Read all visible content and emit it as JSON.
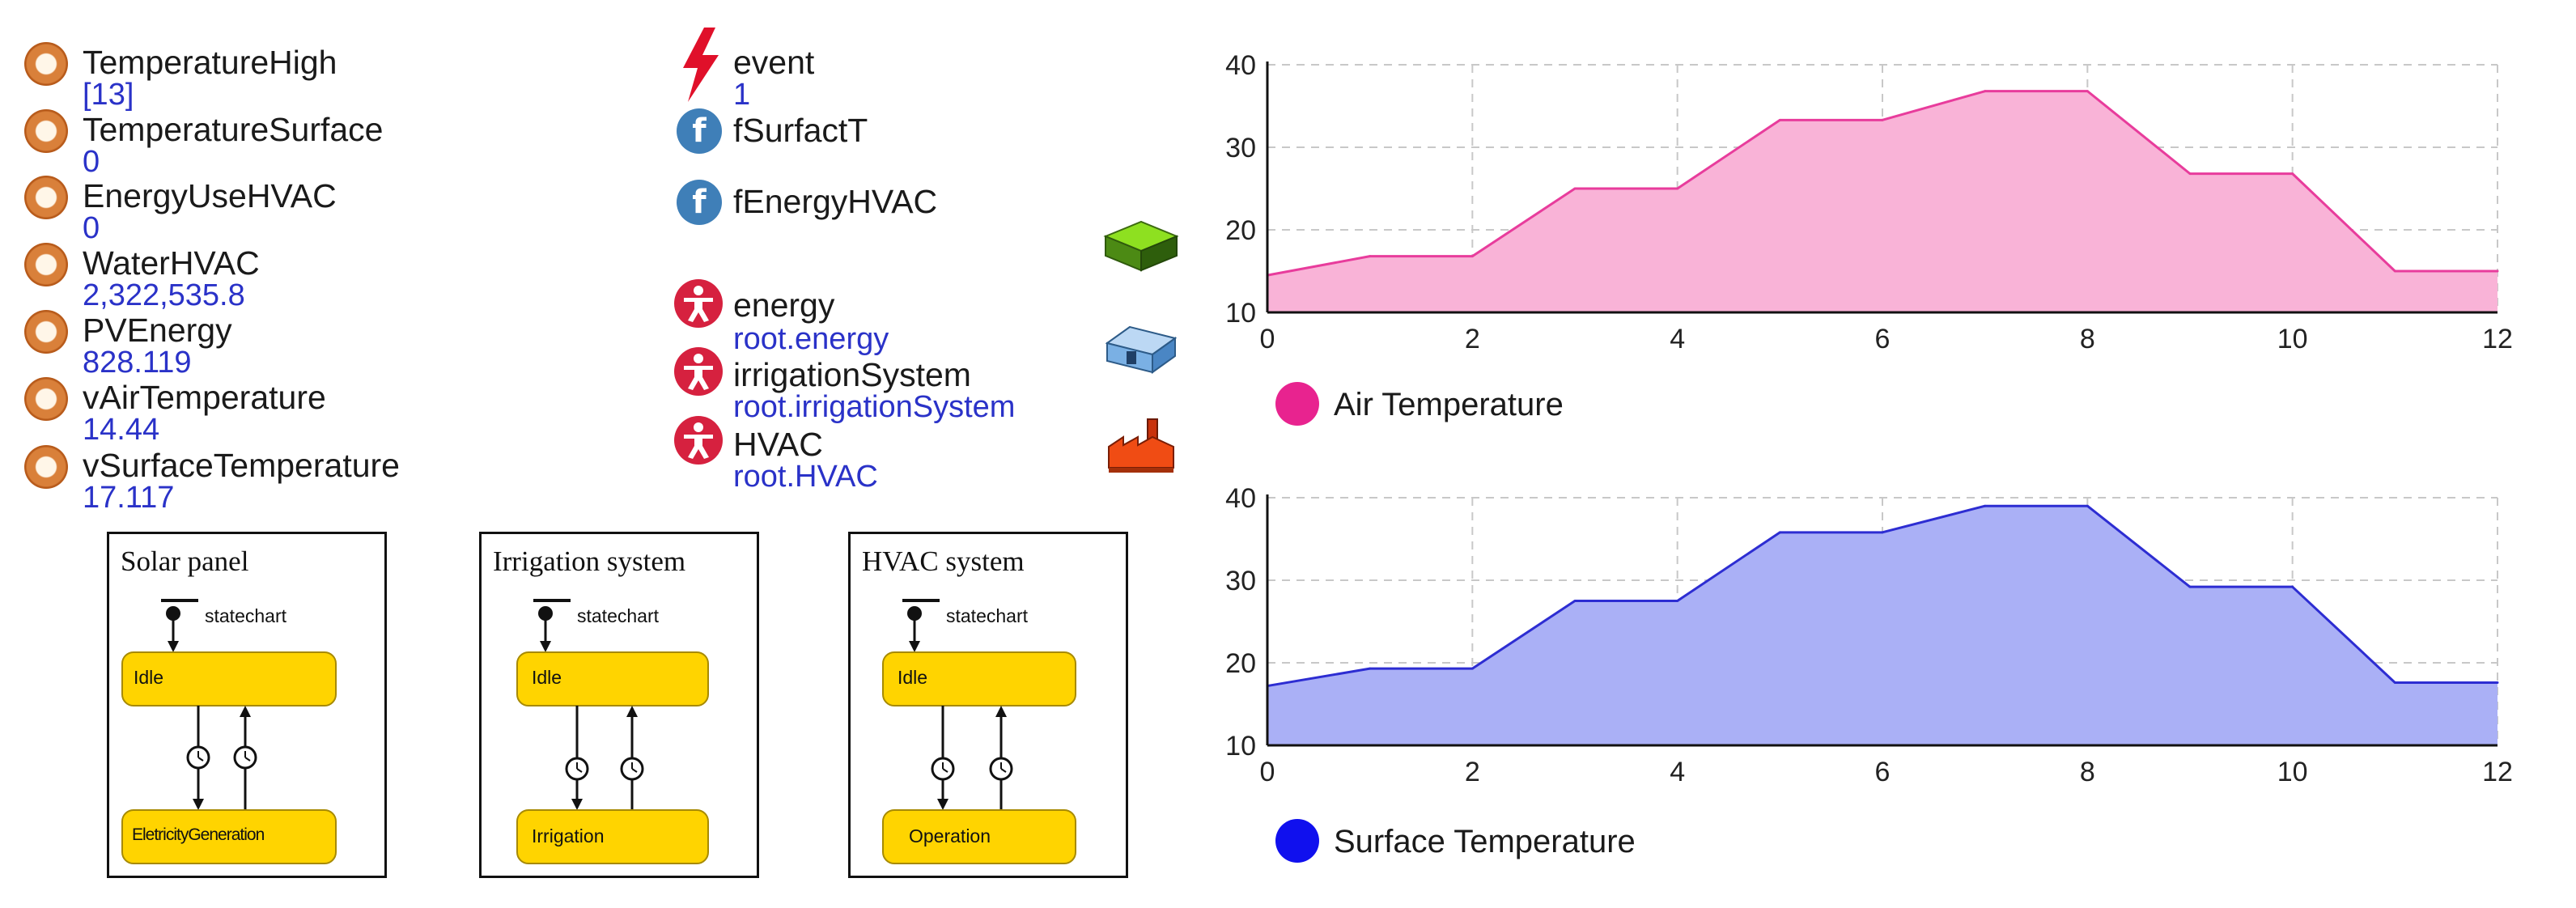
{
  "variables": [
    {
      "name": "TemperatureHigh",
      "value": "[13]"
    },
    {
      "name": "TemperatureSurface",
      "value": "0"
    },
    {
      "name": "EnergyUseHVAC",
      "value": "0"
    },
    {
      "name": "WaterHVAC",
      "value": "2,322,535.8"
    },
    {
      "name": "PVEnergy",
      "value": "828.119"
    },
    {
      "name": "vAirTemperature",
      "value": "14.44"
    },
    {
      "name": "vSurfaceTemperature",
      "value": "17.117"
    }
  ],
  "event": {
    "name": "event",
    "value": "1",
    "icon": "lightning-icon",
    "color": "#e0102a"
  },
  "functions": [
    {
      "name": "fSurfactT",
      "icon": "function-icon"
    },
    {
      "name": "fEnergyHVAC",
      "icon": "function-icon"
    }
  ],
  "agents": [
    {
      "name": "energy",
      "path": "root.energy",
      "icon": "agent-person-icon"
    },
    {
      "name": "irrigationSystem",
      "path": "root.irrigationSystem",
      "icon": "agent-person-icon"
    },
    {
      "name": "HVAC",
      "path": "root.HVAC",
      "icon": "agent-person-icon"
    }
  ],
  "space_icons": [
    "green-block-icon",
    "blue-building-icon",
    "red-factory-icon"
  ],
  "statecharts": [
    {
      "title": "Solar panel",
      "label": "statechart",
      "state_top": "Idle",
      "state_bottom": "EletricityGeneration"
    },
    {
      "title": "Irrigation  system",
      "label": "statechart",
      "state_top": "Idle",
      "state_bottom": "Irrigation"
    },
    {
      "title": "HVAC system",
      "label": "statechart",
      "state_top": "Idle",
      "state_bottom": "Operation"
    }
  ],
  "chart_data": [
    {
      "type": "area",
      "x": [
        0,
        1,
        2,
        3,
        4,
        5,
        6,
        7,
        8,
        9,
        10,
        11,
        12
      ],
      "series": [
        {
          "name": "Air Temperature",
          "values": [
            14.5,
            16.8,
            16.8,
            25,
            25,
            33.3,
            33.3,
            36.8,
            36.8,
            26.8,
            26.8,
            15,
            15
          ]
        }
      ],
      "xlim": [
        0,
        12
      ],
      "ylim": [
        10,
        40
      ],
      "xticks": [
        "0",
        "2",
        "4",
        "6",
        "8",
        "10",
        "12"
      ],
      "yticks": [
        "10",
        "20",
        "30",
        "40"
      ],
      "grid": true,
      "legend": "bottom-left",
      "line_color": "#e83c9c",
      "fill_color": "#f9b3d7",
      "legend_color": "#e8238f"
    },
    {
      "type": "area",
      "x": [
        0,
        1,
        2,
        3,
        4,
        5,
        6,
        7,
        8,
        9,
        10,
        11,
        12
      ],
      "series": [
        {
          "name": "Surface Temperature",
          "values": [
            17.2,
            19.3,
            19.3,
            27.5,
            27.5,
            35.8,
            35.8,
            39,
            39,
            29.2,
            29.2,
            17.6,
            17.6
          ]
        }
      ],
      "xlim": [
        0,
        12
      ],
      "ylim": [
        10,
        40
      ],
      "xticks": [
        "0",
        "2",
        "4",
        "6",
        "8",
        "10",
        "12"
      ],
      "yticks": [
        "10",
        "20",
        "30",
        "40"
      ],
      "grid": true,
      "legend": "bottom-left",
      "line_color": "#2d2dd2",
      "fill_color": "#aab0f6",
      "legend_color": "#1010ee"
    }
  ]
}
